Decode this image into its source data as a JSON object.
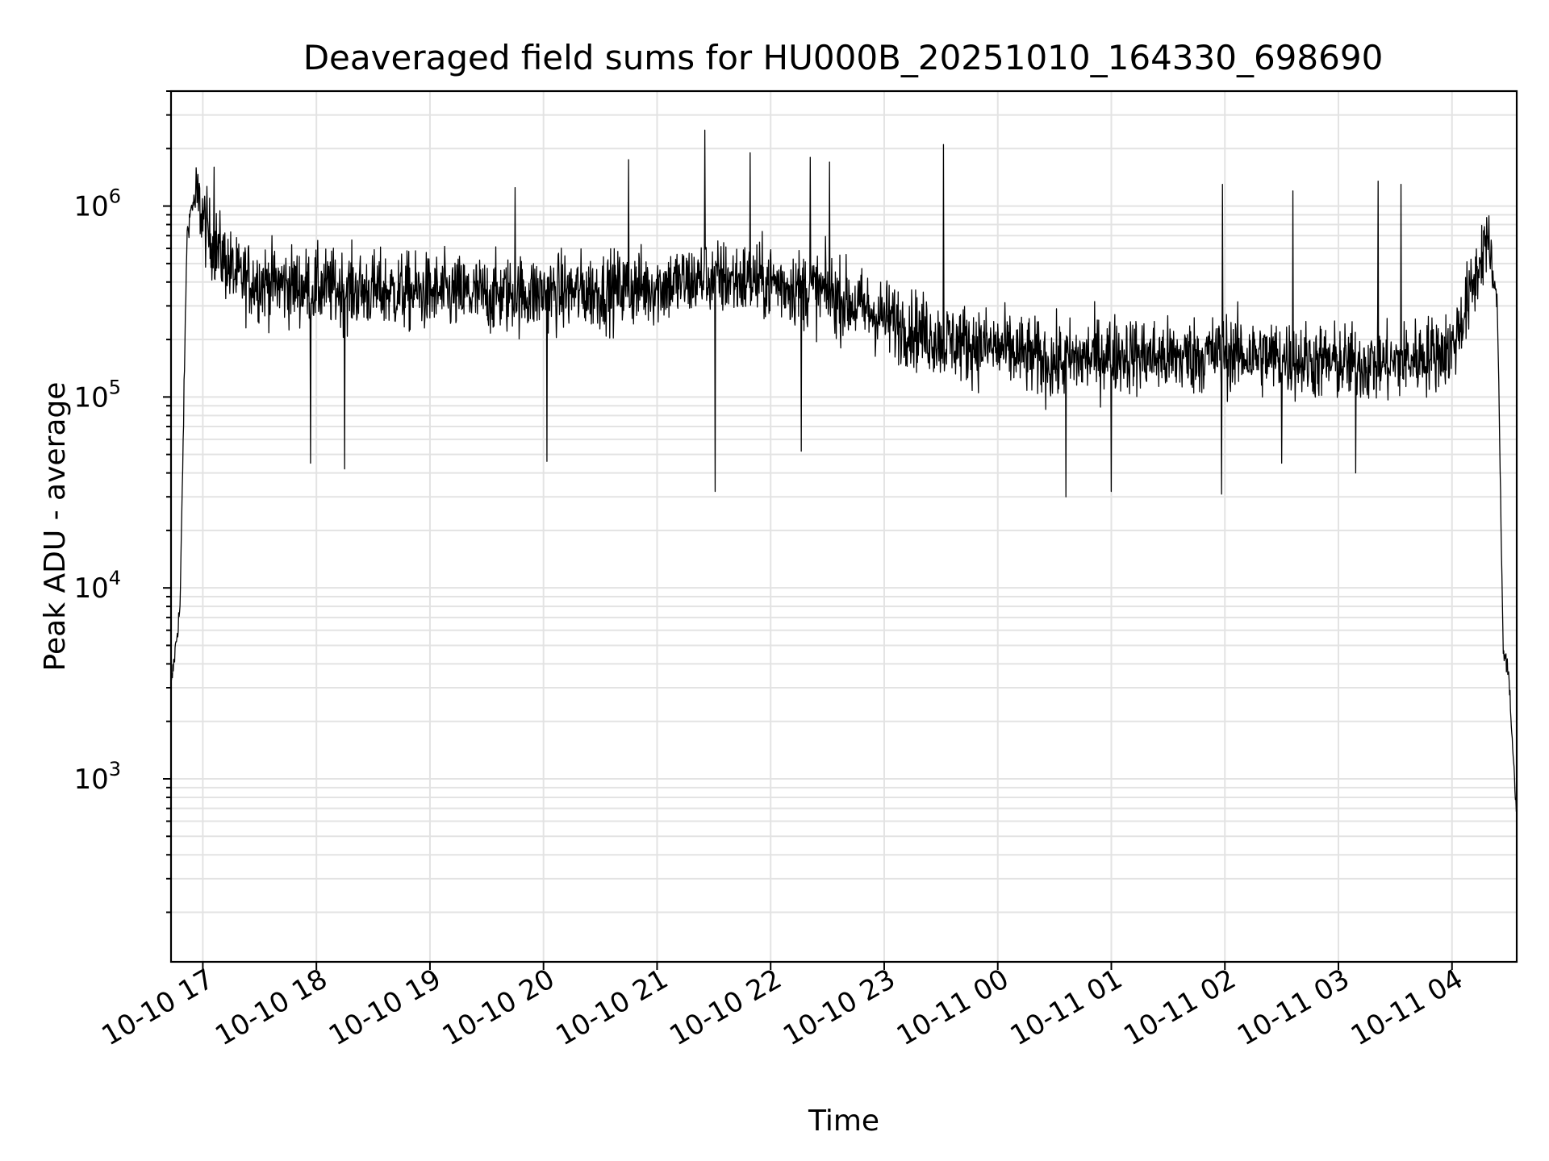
{
  "chart_data": {
    "type": "line",
    "title": "Deaveraged field sums for HU000B_20251010_164330_698690",
    "xlabel": "Time",
    "ylabel": "Peak ADU - average",
    "yscale": "log",
    "ylim": [
      110,
      4000000
    ],
    "xlim_hours": [
      16.72,
      28.57
    ],
    "grid": true,
    "x_tick_labels": [
      "10-10 17",
      "10-10 18",
      "10-10 19",
      "10-10 20",
      "10-10 21",
      "10-10 22",
      "10-10 23",
      "10-11 00",
      "10-11 01",
      "10-11 02",
      "10-11 03",
      "10-11 04"
    ],
    "x_tick_hours": [
      17,
      18,
      19,
      20,
      21,
      22,
      23,
      24,
      25,
      26,
      27,
      28
    ],
    "y_ticks": [
      {
        "value": 1000,
        "base": "10",
        "exp": "3"
      },
      {
        "value": 10000,
        "base": "10",
        "exp": "4"
      },
      {
        "value": 100000,
        "base": "10",
        "exp": "5"
      },
      {
        "value": 1000000,
        "base": "10",
        "exp": "6"
      }
    ],
    "series": [
      {
        "name": "deaveraged field sum",
        "color": "#000000",
        "envelope_hours": [
          16.72,
          16.8,
          16.86,
          16.9,
          16.95,
          17.05,
          17.3,
          17.8,
          18.5,
          19.5,
          20.5,
          21.0,
          21.5,
          22.0,
          22.5,
          23.0,
          23.5,
          24.0,
          24.5,
          25.0,
          25.5,
          26.0,
          26.5,
          27.0,
          27.5,
          28.0,
          28.2,
          28.3,
          28.4,
          28.45,
          28.5,
          28.57
        ],
        "envelope_median": [
          3000,
          8000,
          700000,
          1000000,
          1100000,
          700000,
          420000,
          380000,
          360000,
          340000,
          360000,
          380000,
          420000,
          400000,
          350000,
          260000,
          200000,
          180000,
          150000,
          170000,
          160000,
          170000,
          160000,
          150000,
          150000,
          180000,
          400000,
          700000,
          300000,
          5000,
          3500,
          600
        ],
        "outlier_peaks": [
          {
            "hour": 17.1,
            "value": 1600000
          },
          {
            "hour": 19.75,
            "value": 1250000
          },
          {
            "hour": 20.75,
            "value": 1750000
          },
          {
            "hour": 21.42,
            "value": 2500000
          },
          {
            "hour": 21.82,
            "value": 1900000
          },
          {
            "hour": 22.35,
            "value": 1800000
          },
          {
            "hour": 22.52,
            "value": 1700000
          },
          {
            "hour": 23.52,
            "value": 2100000
          },
          {
            "hour": 25.98,
            "value": 1300000
          },
          {
            "hour": 26.6,
            "value": 1200000
          },
          {
            "hour": 27.35,
            "value": 1350000
          },
          {
            "hour": 27.55,
            "value": 1300000
          }
        ],
        "outlier_dips": [
          {
            "hour": 17.95,
            "value": 45000
          },
          {
            "hour": 18.25,
            "value": 42000
          },
          {
            "hour": 20.03,
            "value": 46000
          },
          {
            "hour": 21.51,
            "value": 32000
          },
          {
            "hour": 22.27,
            "value": 52000
          },
          {
            "hour": 24.6,
            "value": 30000
          },
          {
            "hour": 25.0,
            "value": 32000
          },
          {
            "hour": 25.97,
            "value": 31000
          },
          {
            "hour": 26.5,
            "value": 45000
          },
          {
            "hour": 27.15,
            "value": 40000
          }
        ]
      }
    ]
  }
}
